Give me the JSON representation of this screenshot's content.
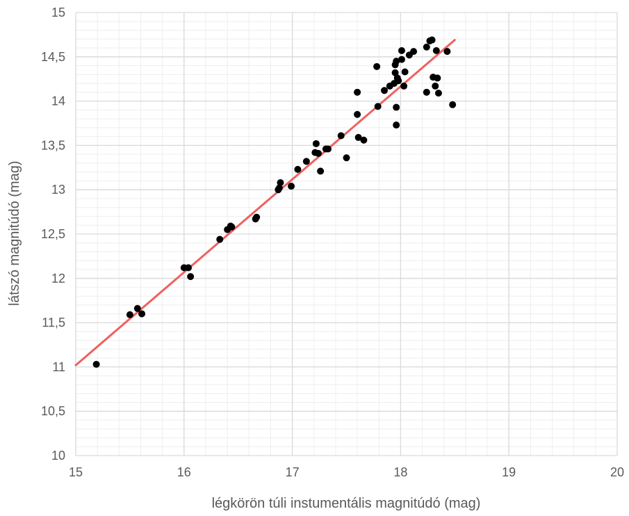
{
  "chart_data": {
    "type": "scatter",
    "title": "",
    "xlabel": "légkörön túli instumentális magnitúdó (mag)",
    "ylabel": "látszó magnitúdó (mag)",
    "xlim": [
      15,
      20
    ],
    "ylim": [
      10,
      15
    ],
    "x_major_ticks": [
      15,
      16,
      17,
      18,
      19,
      20
    ],
    "x_tick_labels": [
      "15",
      "16",
      "17",
      "18",
      "19",
      "20"
    ],
    "y_major_ticks": [
      10,
      10.5,
      11,
      11.5,
      12,
      12.5,
      13,
      13.5,
      14,
      14.5,
      15
    ],
    "y_tick_labels": [
      "10",
      "10,5",
      "11",
      "11,5",
      "12",
      "12,5",
      "13",
      "13,5",
      "14",
      "14,5",
      "15"
    ],
    "x_minor_step": 0.2,
    "y_minor_step": 0.1,
    "grid": true,
    "legend": "none",
    "points": [
      [
        15.19,
        11.03
      ],
      [
        15.5,
        11.59
      ],
      [
        15.57,
        11.66
      ],
      [
        15.61,
        11.6
      ],
      [
        16.0,
        12.12
      ],
      [
        16.04,
        12.12
      ],
      [
        16.06,
        12.02
      ],
      [
        16.33,
        12.44
      ],
      [
        16.4,
        12.55
      ],
      [
        16.43,
        12.59
      ],
      [
        16.44,
        12.58
      ],
      [
        16.66,
        12.67
      ],
      [
        16.67,
        12.69
      ],
      [
        16.87,
        13.0
      ],
      [
        16.88,
        13.02
      ],
      [
        16.89,
        13.08
      ],
      [
        16.99,
        13.04
      ],
      [
        17.05,
        13.23
      ],
      [
        17.13,
        13.32
      ],
      [
        17.21,
        13.42
      ],
      [
        17.22,
        13.52
      ],
      [
        17.24,
        13.41
      ],
      [
        17.26,
        13.21
      ],
      [
        17.31,
        13.46
      ],
      [
        17.33,
        13.46
      ],
      [
        17.45,
        13.61
      ],
      [
        17.5,
        13.36
      ],
      [
        17.6,
        14.1
      ],
      [
        17.6,
        13.85
      ],
      [
        17.61,
        13.59
      ],
      [
        17.66,
        13.56
      ],
      [
        17.78,
        14.39
      ],
      [
        17.79,
        13.94
      ],
      [
        17.85,
        14.12
      ],
      [
        17.9,
        14.17
      ],
      [
        17.94,
        14.2
      ],
      [
        17.95,
        14.32
      ],
      [
        17.95,
        14.41
      ],
      [
        17.96,
        14.45
      ],
      [
        17.96,
        13.93
      ],
      [
        17.96,
        13.73
      ],
      [
        17.97,
        14.26
      ],
      [
        17.98,
        14.23
      ],
      [
        18.01,
        14.57
      ],
      [
        18.01,
        14.47
      ],
      [
        18.03,
        14.17
      ],
      [
        18.04,
        14.33
      ],
      [
        18.08,
        14.52
      ],
      [
        18.12,
        14.56
      ],
      [
        18.24,
        14.61
      ],
      [
        18.24,
        14.1
      ],
      [
        18.27,
        14.68
      ],
      [
        18.29,
        14.69
      ],
      [
        18.3,
        14.27
      ],
      [
        18.32,
        14.17
      ],
      [
        18.33,
        14.57
      ],
      [
        18.34,
        14.26
      ],
      [
        18.35,
        14.09
      ],
      [
        18.43,
        14.56
      ],
      [
        18.48,
        13.96
      ]
    ],
    "fit_line": {
      "x": [
        15.0,
        18.5
      ],
      "y": [
        11.02,
        14.69
      ]
    },
    "colors": {
      "points": "#000000",
      "fit_line": "#f06060",
      "major_grid": "#d9d9d9",
      "minor_grid": "#eeeeee",
      "text": "#595959"
    }
  }
}
